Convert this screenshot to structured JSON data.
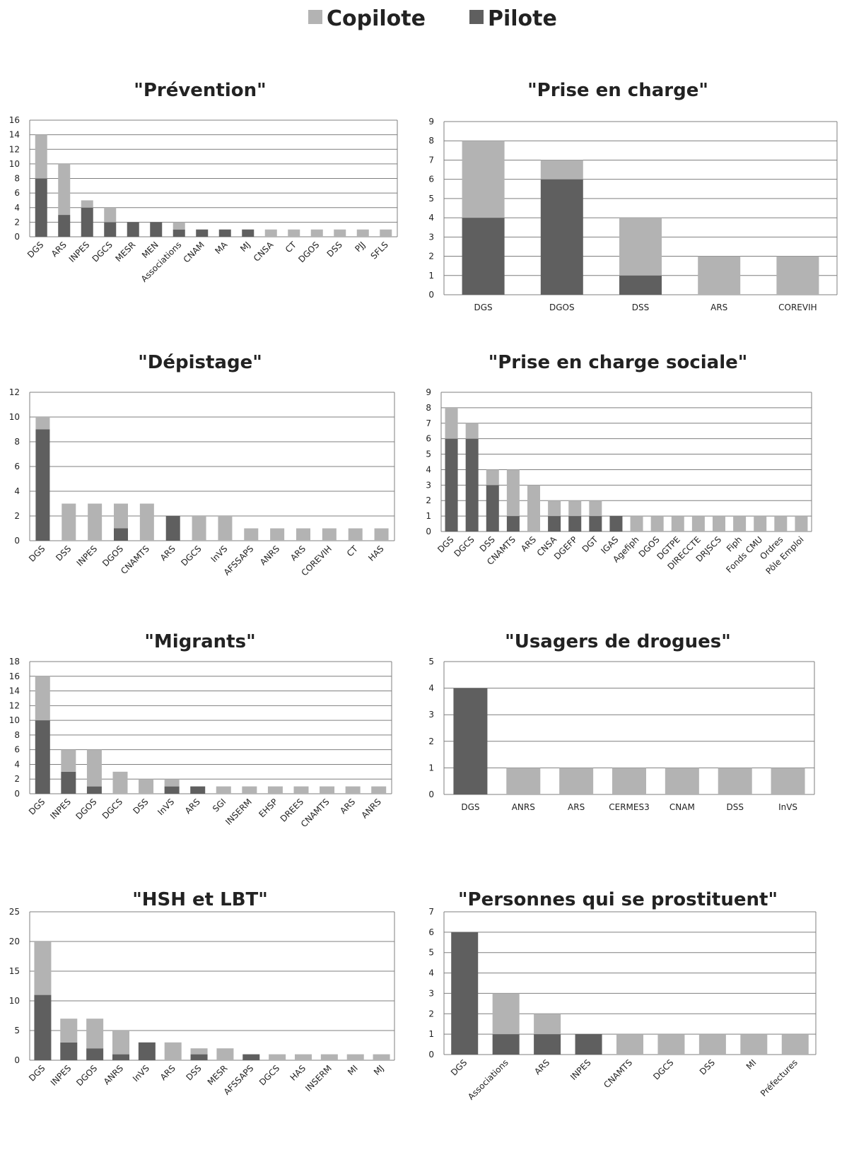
{
  "colors": {
    "copilote": "#b3b3b3",
    "pilote": "#5f5f5f",
    "grid": "#7f7f7f"
  },
  "legend": {
    "items": [
      {
        "label": "Copilote"
      },
      {
        "label": "Pilote"
      }
    ]
  },
  "chart_data": [
    {
      "type": "bar",
      "stacked": true,
      "title": "\"Prévention\"",
      "ylim": [
        0,
        16
      ],
      "yticks": [
        0,
        2,
        4,
        6,
        8,
        10,
        12,
        14,
        16
      ],
      "categories": [
        "DGS",
        "ARS",
        "INPES",
        "DGCS",
        "MESR",
        "MEN",
        "Associations",
        "CNAM",
        "MA",
        "MJ",
        "CNSA",
        "CT",
        "DGOS",
        "DSS",
        "PJJ",
        "SFLS"
      ],
      "series": [
        {
          "name": "Pilote",
          "values": [
            8,
            3,
            4,
            2,
            2,
            2,
            1,
            1,
            1,
            1,
            0,
            0,
            0,
            0,
            0,
            0
          ]
        },
        {
          "name": "Copilote",
          "values": [
            6,
            7,
            1,
            2,
            0,
            0,
            1,
            0,
            0,
            0,
            1,
            1,
            1,
            1,
            1,
            1
          ]
        }
      ]
    },
    {
      "type": "bar",
      "stacked": true,
      "title": "\"Prise en charge\"",
      "ylim": [
        0,
        9
      ],
      "yticks": [
        0,
        1,
        2,
        3,
        4,
        5,
        6,
        7,
        8,
        9
      ],
      "categories": [
        "DGS",
        "DGOS",
        "DSS",
        "ARS",
        "COREVIH"
      ],
      "series": [
        {
          "name": "Pilote",
          "values": [
            4,
            6,
            1,
            0,
            0
          ]
        },
        {
          "name": "Copilote",
          "values": [
            4,
            1,
            3,
            2,
            2
          ]
        }
      ]
    },
    {
      "type": "bar",
      "stacked": true,
      "title": "\"Dépistage\"",
      "ylim": [
        0,
        12
      ],
      "yticks": [
        0,
        2,
        4,
        6,
        8,
        10,
        12
      ],
      "categories": [
        "DGS",
        "DSS",
        "INPES",
        "DGOS",
        "CNAMTS",
        "ARS",
        "DGCS",
        "InVS",
        "AFSSAPS",
        "ANRS",
        "ARS",
        "COREVIH",
        "CT",
        "HAS"
      ],
      "series": [
        {
          "name": "Pilote",
          "values": [
            9,
            0,
            0,
            1,
            0,
            2,
            0,
            0,
            0,
            0,
            0,
            0,
            0,
            0
          ]
        },
        {
          "name": "Copilote",
          "values": [
            1,
            3,
            3,
            2,
            3,
            0,
            2,
            2,
            1,
            1,
            1,
            1,
            1,
            1
          ]
        }
      ]
    },
    {
      "type": "bar",
      "stacked": true,
      "title": "\"Prise en charge sociale\"",
      "ylim": [
        0,
        9
      ],
      "yticks": [
        0,
        1,
        2,
        3,
        4,
        5,
        6,
        7,
        8,
        9
      ],
      "categories": [
        "DGS",
        "DGCS",
        "DSS",
        "CNAMTS",
        "ARS",
        "CNSA",
        "DGEFP",
        "DGT",
        "IGAS",
        "Agefiph",
        "DGOS",
        "DGTPE",
        "DIRECCTE",
        "DRJSCS",
        "Fiph",
        "Fonds CMU",
        "Ordres",
        "Pôle Emploi"
      ],
      "series": [
        {
          "name": "Pilote",
          "values": [
            6,
            6,
            3,
            1,
            0,
            1,
            1,
            1,
            1,
            0,
            0,
            0,
            0,
            0,
            0,
            0,
            0,
            0
          ]
        },
        {
          "name": "Copilote",
          "values": [
            2,
            1,
            1,
            3,
            3,
            1,
            1,
            1,
            0,
            1,
            1,
            1,
            1,
            1,
            1,
            1,
            1,
            1
          ]
        }
      ]
    },
    {
      "type": "bar",
      "stacked": true,
      "title": "\"Migrants\"",
      "ylim": [
        0,
        18
      ],
      "yticks": [
        0,
        2,
        4,
        6,
        8,
        10,
        12,
        14,
        16,
        18
      ],
      "categories": [
        "DGS",
        "INPES",
        "DGOS",
        "DGCS",
        "DSS",
        "InVS",
        "ARS",
        "SGI",
        "INSERM",
        "EHSP",
        "DREES",
        "CNAMTS",
        "ARS",
        "ANRS"
      ],
      "series": [
        {
          "name": "Pilote",
          "values": [
            10,
            3,
            1,
            0,
            0,
            1,
            1,
            0,
            0,
            0,
            0,
            0,
            0,
            0
          ]
        },
        {
          "name": "Copilote",
          "values": [
            6,
            3,
            5,
            3,
            2,
            1,
            0,
            1,
            1,
            1,
            1,
            1,
            1,
            1
          ]
        }
      ]
    },
    {
      "type": "bar",
      "stacked": true,
      "title": "\"Usagers de drogues\"",
      "ylim": [
        0,
        5
      ],
      "yticks": [
        0,
        1,
        2,
        3,
        4,
        5
      ],
      "categories": [
        "DGS",
        "ANRS",
        "ARS",
        "CERMES3",
        "CNAM",
        "DSS",
        "InVS"
      ],
      "series": [
        {
          "name": "Pilote",
          "values": [
            4,
            0,
            0,
            0,
            0,
            0,
            0
          ]
        },
        {
          "name": "Copilote",
          "values": [
            0,
            1,
            1,
            1,
            1,
            1,
            1
          ]
        }
      ]
    },
    {
      "type": "bar",
      "stacked": true,
      "title": "\"HSH et LBT\"",
      "ylim": [
        0,
        25
      ],
      "yticks": [
        0,
        5,
        10,
        15,
        20,
        25
      ],
      "categories": [
        "DGS",
        "INPES",
        "DGOS",
        "ANRS",
        "InVS",
        "ARS",
        "DSS",
        "MESR",
        "AFSSAPS",
        "DGCS",
        "HAS",
        "INSERM",
        "MI",
        "MJ"
      ],
      "series": [
        {
          "name": "Pilote",
          "values": [
            11,
            3,
            2,
            1,
            3,
            0,
            1,
            0,
            1,
            0,
            0,
            0,
            0,
            0
          ]
        },
        {
          "name": "Copilote",
          "values": [
            9,
            4,
            5,
            4,
            0,
            3,
            1,
            2,
            0,
            1,
            1,
            1,
            1,
            1
          ]
        }
      ]
    },
    {
      "type": "bar",
      "stacked": true,
      "title": "\"Personnes qui se prostituent\"",
      "ylim": [
        0,
        7
      ],
      "yticks": [
        0,
        1,
        2,
        3,
        4,
        5,
        6,
        7
      ],
      "categories": [
        "DGS",
        "Associations",
        "ARS",
        "INPES",
        "CNAMTS",
        "DGCS",
        "DSS",
        "MI",
        "Préfectures"
      ],
      "series": [
        {
          "name": "Pilote",
          "values": [
            6,
            1,
            1,
            1,
            0,
            0,
            0,
            0,
            0
          ]
        },
        {
          "name": "Copilote",
          "values": [
            0,
            2,
            1,
            0,
            1,
            1,
            1,
            1,
            1
          ]
        }
      ]
    }
  ]
}
